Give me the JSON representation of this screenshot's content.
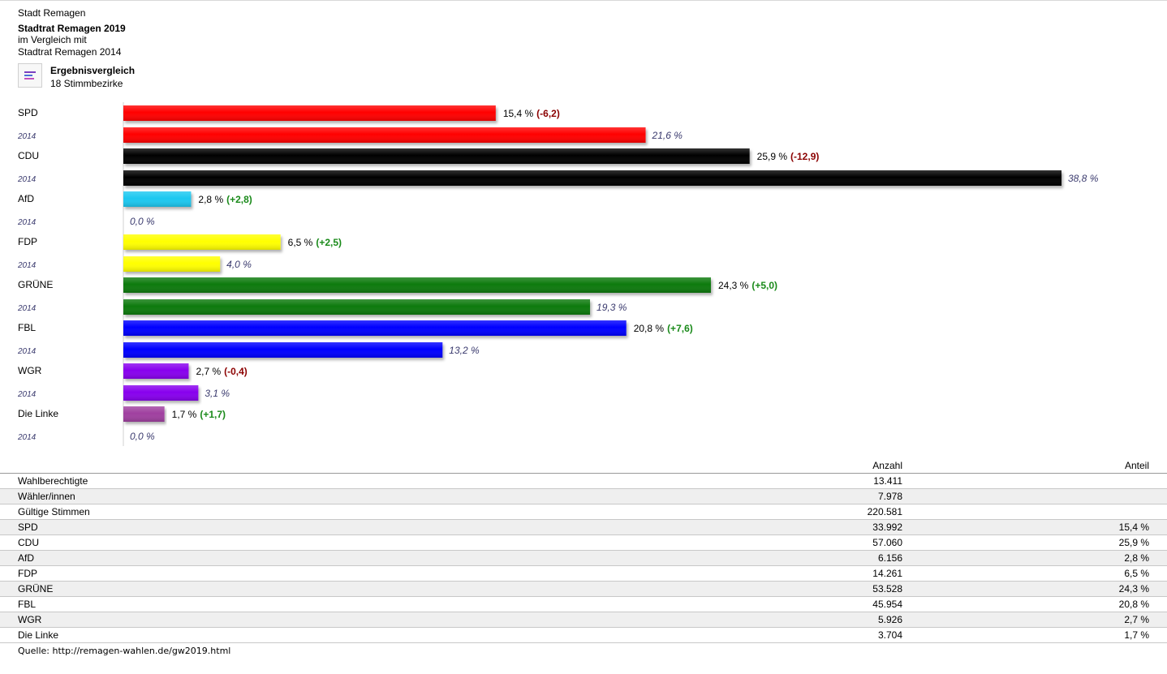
{
  "header": {
    "city": "Stadt Remagen",
    "election": "Stadtrat Remagen 2019",
    "compare_prefix": "im Vergleich mit",
    "compare_election": "Stadtrat Remagen 2014",
    "view_title": "Ergebnisvergleich",
    "districts": "18 Stimmbezirke"
  },
  "chart_data": {
    "type": "bar",
    "orientation": "horizontal",
    "categories": [
      "SPD",
      "CDU",
      "AfD",
      "FDP",
      "GRÜNE",
      "FBL",
      "WGR",
      "Die Linke"
    ],
    "series": [
      {
        "name": "",
        "values": [
          15.4,
          25.9,
          2.8,
          6.5,
          24.3,
          20.8,
          2.7,
          1.7
        ]
      },
      {
        "name": "2014",
        "values": [
          21.6,
          38.8,
          0.0,
          4.0,
          19.3,
          13.2,
          3.1,
          0.0
        ]
      }
    ],
    "value_labels": [
      "15,4 %",
      "25,9 %",
      "2,8 %",
      "6,5 %",
      "24,3 %",
      "20,8 %",
      "2,7 %",
      "1,7 %"
    ],
    "prev_labels": [
      "21,6 %",
      "38,8 %",
      "0,0 %",
      "4,0 %",
      "19,3 %",
      "13,2 %",
      "3,1 %",
      "0,0 %"
    ],
    "diff_labels": [
      "(-6,2)",
      "(-12,9)",
      "(+2,8)",
      "(+2,5)",
      "(+5,0)",
      "(+7,6)",
      "(-0,4)",
      "(+1,7)"
    ],
    "diff_values": [
      -6.2,
      -12.9,
      2.8,
      2.5,
      5.0,
      7.6,
      -0.4,
      1.7
    ],
    "compare_row_label": "2014",
    "colors": [
      "#ff0000",
      "#000000",
      "#1ec8f0",
      "#ffff00",
      "#0a7a0a",
      "#0000ff",
      "#8800ee",
      "#a040a0"
    ],
    "diff_colors": {
      "negative": "#8b0000",
      "positive": "#1a8a1a"
    },
    "prev_label_color": "#3a3a6e",
    "xlim": [
      0,
      38.8
    ]
  },
  "table": {
    "headers": {
      "col1": "Anzahl",
      "col2": "Anteil"
    },
    "rows": [
      {
        "label": "Wahlberechtigte",
        "count": "13.411",
        "share": ""
      },
      {
        "label": "Wähler/innen",
        "count": "7.978",
        "share": ""
      },
      {
        "label": "Gültige Stimmen",
        "count": "220.581",
        "share": ""
      },
      {
        "label": "SPD",
        "count": "33.992",
        "share": "15,4 %"
      },
      {
        "label": "CDU",
        "count": "57.060",
        "share": "25,9 %"
      },
      {
        "label": "AfD",
        "count": "6.156",
        "share": "2,8 %"
      },
      {
        "label": "FDP",
        "count": "14.261",
        "share": "6,5 %"
      },
      {
        "label": "GRÜNE",
        "count": "53.528",
        "share": "24,3 %"
      },
      {
        "label": "FBL",
        "count": "45.954",
        "share": "20,8 %"
      },
      {
        "label": "WGR",
        "count": "5.926",
        "share": "2,7 %"
      },
      {
        "label": "Die Linke",
        "count": "3.704",
        "share": "1,7 %"
      }
    ]
  },
  "footer": {
    "source": "Quelle: http://remagen-wahlen.de/gw2019.html"
  }
}
